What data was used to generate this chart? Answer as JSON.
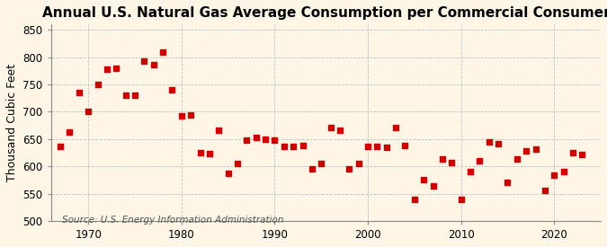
{
  "title": "Annual U.S. Natural Gas Average Consumption per Commercial Consumer",
  "ylabel": "Thousand Cubic Feet",
  "source": "Source: U.S. Energy Information Administration",
  "background_color": "#fdf5e6",
  "plot_bg_color": "#fdf5e6",
  "marker_color": "#cc0000",
  "marker_size": 14,
  "years": [
    1967,
    1968,
    1969,
    1970,
    1971,
    1972,
    1973,
    1974,
    1975,
    1976,
    1977,
    1978,
    1979,
    1980,
    1981,
    1982,
    1983,
    1984,
    1985,
    1986,
    1987,
    1988,
    1989,
    1990,
    1991,
    1992,
    1993,
    1994,
    1995,
    1996,
    1997,
    1998,
    1999,
    2000,
    2001,
    2002,
    2003,
    2004,
    2005,
    2006,
    2007,
    2008,
    2009,
    2010,
    2011,
    2012,
    2013,
    2014,
    2015,
    2016,
    2017,
    2018,
    2019,
    2020,
    2021,
    2022,
    2023
  ],
  "values": [
    637,
    663,
    736,
    700,
    750,
    778,
    779,
    730,
    730,
    793,
    786,
    810,
    740,
    693,
    694,
    625,
    624,
    667,
    588,
    606,
    648,
    653,
    650,
    648,
    637,
    637,
    638,
    596,
    605,
    671,
    666,
    596,
    606,
    636,
    636,
    635,
    671,
    638,
    540,
    575,
    564,
    613,
    607,
    540,
    591,
    610,
    645,
    641,
    571,
    614,
    628,
    631,
    556,
    584,
    591,
    625,
    622
  ],
  "ylim": [
    500,
    860
  ],
  "yticks": [
    500,
    550,
    600,
    650,
    700,
    750,
    800,
    850
  ],
  "xlim": [
    1966,
    2025
  ],
  "xticks": [
    1970,
    1980,
    1990,
    2000,
    2010,
    2020
  ],
  "grid_color": "#bbbbbb",
  "title_fontsize": 11,
  "label_fontsize": 9,
  "tick_fontsize": 8.5,
  "source_fontsize": 7.5
}
